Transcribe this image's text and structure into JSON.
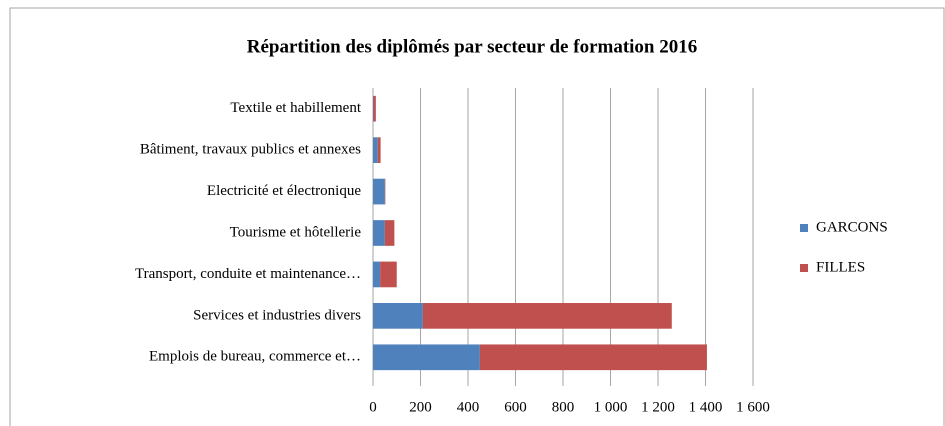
{
  "chart_data": {
    "type": "stacked_bar_horizontal",
    "title": "Répartition des diplômés par secteur de formation  2016",
    "categories": [
      "Textile et habillement",
      "Bâtiment, travaux publics et annexes",
      "Electricité et électronique",
      "Tourisme et hôtellerie",
      "Transport, conduite et maintenance…",
      "Services et industries divers",
      "Emplois de bureau, commerce et…"
    ],
    "series": [
      {
        "name": "GARCONS",
        "color": "#4f81bd",
        "values": [
          2,
          20,
          50,
          50,
          30,
          210,
          450
        ]
      },
      {
        "name": "FILLES",
        "color": "#c0504d",
        "values": [
          10,
          12,
          2,
          40,
          70,
          1048,
          956
        ]
      }
    ],
    "xlim": [
      0,
      1600
    ],
    "xticks": [
      0,
      200,
      400,
      600,
      800,
      {
        "value": 1000,
        "label": "1 000"
      },
      {
        "value": 1200,
        "label": "1 200"
      },
      {
        "value": 1400,
        "label": "1 400"
      },
      {
        "value": 1600,
        "label": "1 600"
      }
    ],
    "grid": true,
    "legend": "right"
  }
}
